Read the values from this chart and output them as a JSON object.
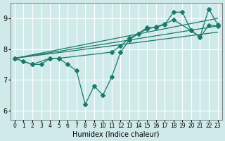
{
  "xlabel": "Humidex (Indice chaleur)",
  "ylabel": "",
  "background_color": "#d0eaea",
  "grid_color": "#ffffff",
  "line_color": "#1a7a6a",
  "xlim": [
    -0.5,
    23.5
  ],
  "ylim": [
    5.7,
    9.5
  ],
  "xticks": [
    0,
    1,
    2,
    3,
    4,
    5,
    6,
    7,
    8,
    9,
    10,
    11,
    12,
    13,
    14,
    15,
    16,
    17,
    18,
    19,
    20,
    21,
    22,
    23
  ],
  "yticks": [
    6,
    7,
    8,
    9
  ],
  "series": {
    "line1": {
      "x": [
        0,
        1,
        2,
        3,
        4,
        5,
        6,
        7,
        8,
        9,
        10,
        11,
        12,
        13,
        14,
        15,
        16,
        17,
        18,
        19,
        20,
        21,
        22,
        23
      ],
      "y": [
        7.7,
        7.6,
        7.5,
        7.5,
        7.7,
        7.7,
        7.5,
        7.3,
        6.2,
        6.8,
        6.5,
        7.1,
        7.9,
        8.3,
        8.5,
        8.7,
        8.7,
        8.8,
        9.2,
        9.2,
        8.6,
        8.4,
        9.3,
        8.8
      ]
    },
    "line2": {
      "x": [
        0,
        2,
        4,
        5,
        11,
        12,
        13,
        14,
        15,
        16,
        17,
        18,
        20,
        21,
        22,
        23
      ],
      "y": [
        7.7,
        7.5,
        7.7,
        7.7,
        7.9,
        8.1,
        8.35,
        8.5,
        8.65,
        8.72,
        8.82,
        8.95,
        8.6,
        8.38,
        8.78,
        8.75
      ]
    },
    "line3_top": {
      "x": [
        0,
        23
      ],
      "y": [
        7.7,
        9.0
      ]
    },
    "line3_mid": {
      "x": [
        0,
        23
      ],
      "y": [
        7.7,
        8.75
      ]
    },
    "line3_bot": {
      "x": [
        0,
        23
      ],
      "y": [
        7.7,
        8.55
      ]
    }
  }
}
